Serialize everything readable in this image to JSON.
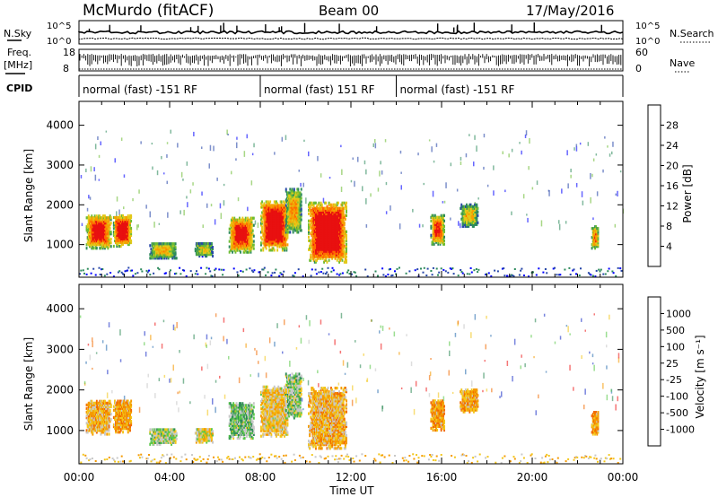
{
  "header": {
    "station": "McMurdo (fitACF)",
    "beam": "Beam 00",
    "date": "17/May/2016"
  },
  "noise_panel": {
    "left_label": "N.Sky",
    "right_label": "N.Search",
    "ticks": [
      "10^5",
      "10^0"
    ]
  },
  "freq_panel": {
    "left_label": "Freq.",
    "left_unit": "[MHz]",
    "left_ticks": [
      "18",
      "8"
    ],
    "right_label": "Nave",
    "right_ticks": [
      "60",
      "0"
    ]
  },
  "cpid": {
    "label": "CPID",
    "segments": [
      {
        "start": "00:00",
        "end": "08:00",
        "text": "normal (fast) -151 RF"
      },
      {
        "start": "08:00",
        "end": "14:00",
        "text": "normal (fast) 151 RF"
      },
      {
        "start": "14:00",
        "end": "24:00",
        "text": "normal (fast) -151 RF"
      }
    ]
  },
  "chart_data": [
    {
      "type": "heatmap",
      "name": "power",
      "ylabel": "Slant Range [km]",
      "xlabel": "",
      "x_range": [
        "00:00",
        "24:00"
      ],
      "y_range_km": [
        180,
        4600
      ],
      "yticks": [
        "1000",
        "2000",
        "3000",
        "4000"
      ],
      "colorbar_label": "Power [dB]",
      "colorbar_ticks": [
        "4",
        "8",
        "12",
        "16",
        "20",
        "24",
        "28"
      ],
      "colors": [
        "#0000ff",
        "#2646a8",
        "#2d8a5c",
        "#6cbc34",
        "#e3c91a",
        "#f5a000",
        "#ff6a00",
        "#e81010"
      ],
      "echo_regions": [
        {
          "t0": 0.3,
          "t1": 1.4,
          "r0": 900,
          "r1": 1750,
          "level": 0.72
        },
        {
          "t0": 1.5,
          "t1": 2.3,
          "r0": 950,
          "r1": 1750,
          "level": 0.75
        },
        {
          "t0": 3.1,
          "t1": 4.3,
          "r0": 650,
          "r1": 1050,
          "level": 0.45
        },
        {
          "t0": 5.1,
          "t1": 5.9,
          "r0": 700,
          "r1": 1050,
          "level": 0.4
        },
        {
          "t0": 6.6,
          "t1": 7.7,
          "r0": 800,
          "r1": 1700,
          "level": 0.7
        },
        {
          "t0": 8.0,
          "t1": 9.2,
          "r0": 850,
          "r1": 2100,
          "level": 0.85
        },
        {
          "t0": 9.1,
          "t1": 9.8,
          "r0": 1300,
          "r1": 2400,
          "level": 0.5
        },
        {
          "t0": 10.1,
          "t1": 11.8,
          "r0": 550,
          "r1": 2050,
          "level": 0.88
        },
        {
          "t0": 15.5,
          "t1": 16.1,
          "r0": 1000,
          "r1": 1750,
          "level": 0.65
        },
        {
          "t0": 16.8,
          "t1": 17.6,
          "r0": 1450,
          "r1": 2000,
          "level": 0.45
        },
        {
          "t0": 22.6,
          "t1": 22.9,
          "r0": 900,
          "r1": 1450,
          "level": 0.55
        }
      ]
    },
    {
      "type": "heatmap",
      "name": "velocity",
      "ylabel": "Slant Range [km]",
      "xlabel": "Time UT",
      "x_range": [
        "00:00",
        "24:00"
      ],
      "xticks": [
        "00:00",
        "04:00",
        "08:00",
        "12:00",
        "16:00",
        "20:00",
        "00:00"
      ],
      "y_range_km": [
        180,
        4600
      ],
      "yticks": [
        "1000",
        "2000",
        "3000",
        "4000"
      ],
      "colorbar_label": "Velocity [m s⁻¹]",
      "colorbar_ticks": [
        "1000",
        "500",
        "100",
        "25",
        "-25",
        "-100",
        "-500",
        "-1000"
      ],
      "colors": [
        "#1e32c8",
        "#2b6fb0",
        "#2e8b57",
        "#5ac84a",
        "#c8c8c8",
        "#f3c61a",
        "#f59a00",
        "#f26a00",
        "#ee1a1a"
      ],
      "echo_regions": [
        {
          "t0": 0.3,
          "t1": 1.4,
          "r0": 900,
          "r1": 1750,
          "level": 0.35
        },
        {
          "t0": 1.5,
          "t1": 2.3,
          "r0": 950,
          "r1": 1750,
          "level": 0.3
        },
        {
          "t0": 3.1,
          "t1": 4.3,
          "r0": 650,
          "r1": 1050,
          "level": 0.55
        },
        {
          "t0": 5.1,
          "t1": 5.9,
          "r0": 700,
          "r1": 1050,
          "level": 0.45
        },
        {
          "t0": 6.6,
          "t1": 7.7,
          "r0": 800,
          "r1": 1700,
          "level": 0.6
        },
        {
          "t0": 8.0,
          "t1": 9.2,
          "r0": 850,
          "r1": 2100,
          "level": 0.4
        },
        {
          "t0": 9.1,
          "t1": 9.8,
          "r0": 1300,
          "r1": 2400,
          "level": 0.55
        },
        {
          "t0": 10.1,
          "t1": 11.8,
          "r0": 550,
          "r1": 2050,
          "level": 0.35
        },
        {
          "t0": 15.5,
          "t1": 16.1,
          "r0": 1000,
          "r1": 1750,
          "level": 0.3
        },
        {
          "t0": 16.8,
          "t1": 17.6,
          "r0": 1450,
          "r1": 2000,
          "level": 0.3
        },
        {
          "t0": 22.6,
          "t1": 22.9,
          "r0": 900,
          "r1": 1450,
          "level": 0.3
        }
      ]
    }
  ]
}
